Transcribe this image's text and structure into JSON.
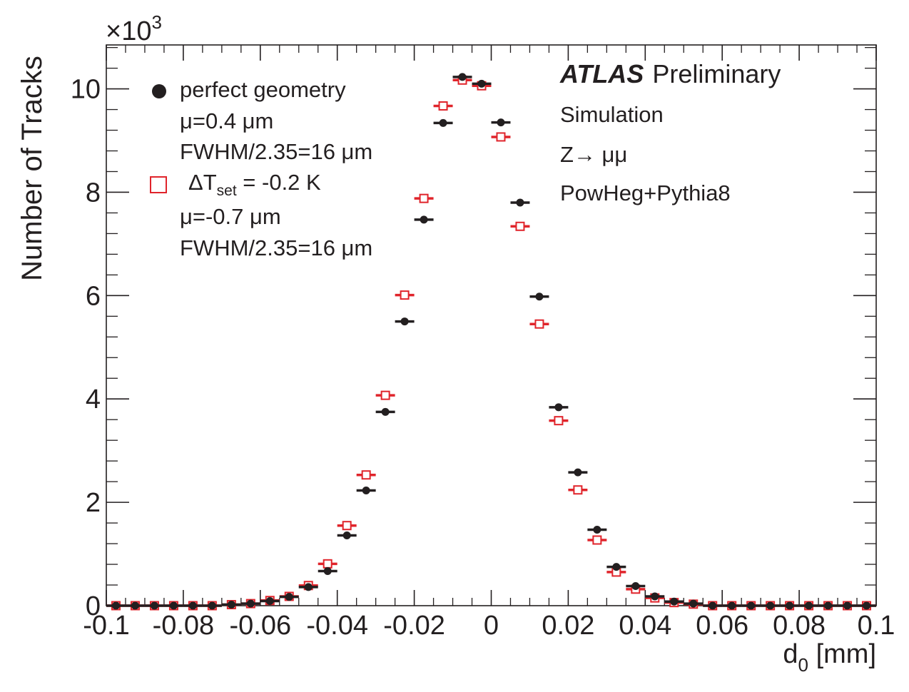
{
  "chart_data": {
    "type": "scatter",
    "title": "",
    "xlabel": "d",
    "xlabel_sub": "0",
    "xlabel_unit": " [mm]",
    "ylabel": "Number of Tracks",
    "y_multiplier_label": "×10",
    "y_multiplier_exp": "3",
    "xlim": [
      -0.1,
      0.1
    ],
    "ylim": [
      0,
      10.85
    ],
    "x_ticks": [
      -0.1,
      -0.08,
      -0.06,
      -0.04,
      -0.02,
      0,
      0.02,
      0.04,
      0.06,
      0.08,
      0.1
    ],
    "x_tick_labels": [
      "-0.1",
      "-0.08",
      "-0.06",
      "-0.04",
      "-0.02",
      "0",
      "0.02",
      "0.04",
      "0.06",
      "0.08",
      "0.1"
    ],
    "y_ticks": [
      0,
      2,
      4,
      6,
      8,
      10
    ],
    "y_tick_labels": [
      "0",
      "2",
      "4",
      "6",
      "8",
      "10"
    ],
    "grid": false,
    "legend_position": "top-left",
    "series": [
      {
        "name": "perfect geometry",
        "line2": "μ=0.4 μm",
        "line3": "FWHM/2.35=16 μm",
        "marker": "filled-circle",
        "color": "#231f20",
        "x": [
          -0.0975,
          -0.0925,
          -0.0875,
          -0.0825,
          -0.0775,
          -0.0725,
          -0.0675,
          -0.0625,
          -0.0575,
          -0.0525,
          -0.0475,
          -0.0425,
          -0.0375,
          -0.0325,
          -0.0275,
          -0.0225,
          -0.0175,
          -0.0125,
          -0.0075,
          -0.0025,
          0.0025,
          0.0075,
          0.0125,
          0.0175,
          0.0225,
          0.0275,
          0.0325,
          0.0375,
          0.0425,
          0.0475,
          0.0525,
          0.0575,
          0.0625,
          0.0675,
          0.0725,
          0.0775,
          0.0825,
          0.0875,
          0.0925,
          0.0975
        ],
        "y": [
          0.0,
          0.0,
          0.0,
          0.0,
          0.0,
          0.0,
          0.02,
          0.04,
          0.09,
          0.17,
          0.36,
          0.67,
          1.36,
          2.23,
          3.75,
          5.5,
          7.47,
          9.34,
          10.23,
          10.1,
          9.35,
          7.8,
          5.98,
          3.84,
          2.58,
          1.47,
          0.75,
          0.38,
          0.18,
          0.08,
          0.04,
          0.0,
          0.0,
          0.0,
          0.0,
          0.0,
          0.0,
          0.0,
          0.0,
          0.0
        ]
      },
      {
        "name": "ΔT",
        "name_sub": "set",
        "name_rest": " = -0.2 K",
        "line2": "μ=-0.7 μm",
        "line3": "FWHM/2.35=16 μm",
        "marker": "open-square",
        "color": "#e0242b",
        "x": [
          -0.0975,
          -0.0925,
          -0.0875,
          -0.0825,
          -0.0775,
          -0.0725,
          -0.0675,
          -0.0625,
          -0.0575,
          -0.0525,
          -0.0475,
          -0.0425,
          -0.0375,
          -0.0325,
          -0.0275,
          -0.0225,
          -0.0175,
          -0.0125,
          -0.0075,
          -0.0025,
          0.0025,
          0.0075,
          0.0125,
          0.0175,
          0.0225,
          0.0275,
          0.0325,
          0.0375,
          0.0425,
          0.0475,
          0.0525,
          0.0575,
          0.0625,
          0.0675,
          0.0725,
          0.0775,
          0.0825,
          0.0875,
          0.0925,
          0.0975
        ],
        "y": [
          0.0,
          0.0,
          0.0,
          0.0,
          0.0,
          0.0,
          0.02,
          0.04,
          0.1,
          0.18,
          0.39,
          0.81,
          1.55,
          2.53,
          4.07,
          6.01,
          7.88,
          9.67,
          10.17,
          10.06,
          9.07,
          7.34,
          5.45,
          3.58,
          2.24,
          1.27,
          0.65,
          0.32,
          0.15,
          0.06,
          0.03,
          0.0,
          0.0,
          0.0,
          0.0,
          0.0,
          0.0,
          0.0,
          0.0,
          0.0
        ]
      }
    ],
    "annotations": {
      "atlas": "ATLAS",
      "preliminary": "Preliminary",
      "line2": "Simulation",
      "line3": "Z→ μμ",
      "line4": "PowHeg+Pythia8"
    }
  }
}
